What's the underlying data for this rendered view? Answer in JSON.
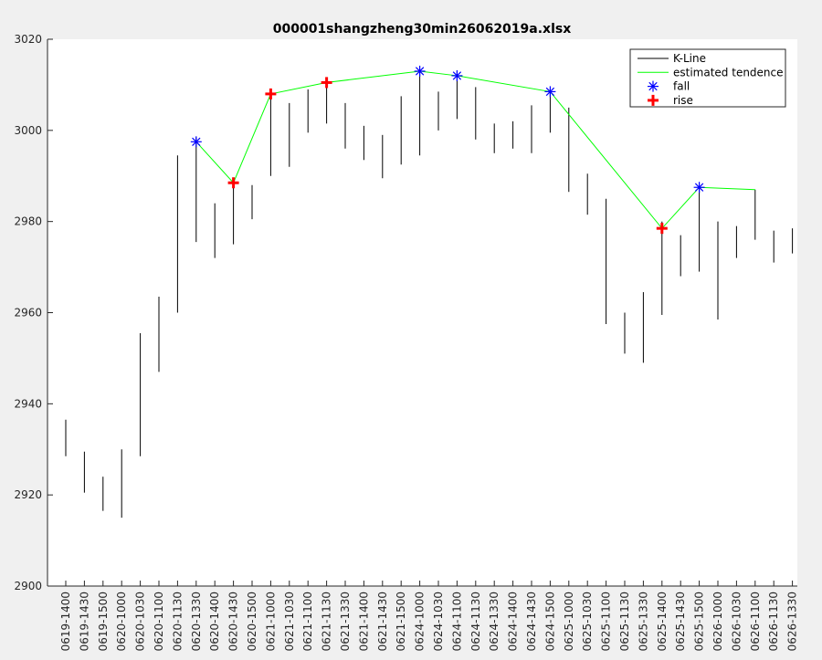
{
  "chart_data": {
    "type": "line",
    "title": "000001shangzheng30min26062019a.xlsx",
    "xlabel": "",
    "ylabel": "",
    "ylim": [
      2900,
      3020
    ],
    "yticks": [
      2900,
      2920,
      2940,
      2960,
      2980,
      3000,
      3020
    ],
    "grid": false,
    "legend_position": "top-right",
    "categories": [
      "0619-1400",
      "0619-1430",
      "0619-1500",
      "0620-1000",
      "0620-1030",
      "0620-1100",
      "0620-1130",
      "0620-1330",
      "0620-1400",
      "0620-1430",
      "0620-1500",
      "0621-1000",
      "0621-1030",
      "0621-1100",
      "0621-1130",
      "0621-1330",
      "0621-1400",
      "0621-1430",
      "0621-1500",
      "0624-1000",
      "0624-1030",
      "0624-1100",
      "0624-1130",
      "0624-1330",
      "0624-1400",
      "0624-1430",
      "0624-1500",
      "0625-1000",
      "0625-1030",
      "0625-1100",
      "0625-1130",
      "0625-1330",
      "0625-1400",
      "0625-1430",
      "0625-1500",
      "0626-1000",
      "0626-1030",
      "0626-1100",
      "0626-1130",
      "0626-1330"
    ],
    "series": [
      {
        "name": "K-Line",
        "type": "range",
        "color": "#000000",
        "low": [
          2928.5,
          2920.5,
          2916.5,
          2915,
          2928.5,
          2947,
          2960,
          2975.5,
          2972,
          2975,
          2980.5,
          2990,
          2992,
          2999.5,
          3001.5,
          2996,
          2993.5,
          2989.5,
          2992.5,
          2994.5,
          3000,
          3002.5,
          2998,
          2995,
          2996,
          2995,
          2999.5,
          2986.5,
          2981.5,
          2957.5,
          2951,
          2949,
          2959.5,
          2968,
          2969,
          2958.5,
          2972,
          2976,
          2971,
          2973
        ],
        "high": [
          2936.5,
          2929.5,
          2924,
          2930,
          2955.5,
          2963.5,
          2994.5,
          2998.5,
          2984,
          2989,
          2988,
          3008.5,
          3006,
          3009,
          3011.5,
          3006,
          3001,
          2999,
          3007.5,
          3013.5,
          3008.5,
          3013,
          3009.5,
          3001.5,
          3002,
          3005.5,
          3009,
          3005,
          2990.5,
          2985,
          2960,
          2964.5,
          2980,
          2977,
          2987.5,
          2980,
          2979,
          2987,
          2978,
          2978.5
        ]
      },
      {
        "name": "estimated tendence",
        "type": "line",
        "color": "#00ff00",
        "x": [
          "0620-1330",
          "0620-1430",
          "0621-1000",
          "0621-1130",
          "0624-1000",
          "0624-1100",
          "0624-1500",
          "0625-1400",
          "0625-1500",
          "0626-1100"
        ],
        "y": [
          2997.5,
          2988.5,
          3008,
          3010.5,
          3013,
          3012,
          3008.5,
          2978.5,
          2987.5,
          2987
        ]
      },
      {
        "name": "fall",
        "type": "scatter",
        "marker": "asterisk",
        "color": "#0000ff",
        "x": [
          "0620-1330",
          "0624-1000",
          "0624-1100",
          "0624-1500",
          "0625-1500"
        ],
        "y": [
          2997.5,
          3013,
          3012,
          3008.5,
          2987.5
        ]
      },
      {
        "name": "rise",
        "type": "scatter",
        "marker": "plus",
        "color": "#ff0000",
        "x": [
          "0620-1430",
          "0621-1000",
          "0621-1130",
          "0625-1400"
        ],
        "y": [
          2988.5,
          3008,
          3010.5,
          2978.5
        ]
      }
    ]
  }
}
